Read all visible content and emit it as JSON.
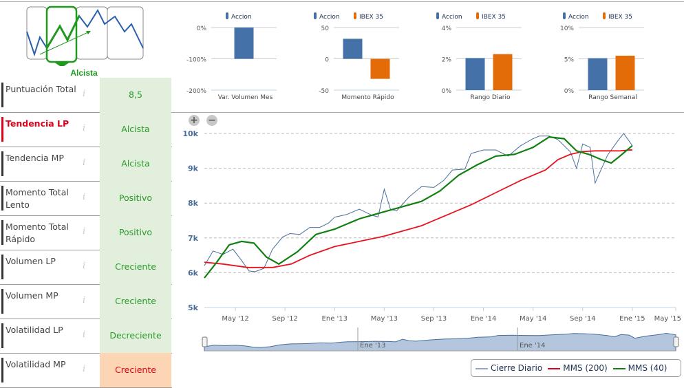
{
  "badge": {
    "label": "Alcista"
  },
  "rows": [
    {
      "label": "Puntuación Total",
      "value": "8,5"
    },
    {
      "label": "Tendencia LP",
      "value": "Alcista"
    },
    {
      "label": "Tendencia MP",
      "value": "Alcista"
    },
    {
      "label": "Momento Total Lento",
      "value": "Positivo"
    },
    {
      "label": "Momento Total Rápido",
      "value": "Positivo"
    },
    {
      "label": "Volumen LP",
      "value": "Creciente"
    },
    {
      "label": "Volumen MP",
      "value": "Creciente"
    },
    {
      "label": "Volatilidad LP",
      "value": "Decreciente"
    },
    {
      "label": "Volatilidad MP",
      "value": "Creciente"
    }
  ],
  "info_icon": "i",
  "colors": {
    "accion": "#4472a8",
    "ibex": "#e36c09",
    "green": "#1f9a1f",
    "red": "#e0001a"
  },
  "chart_data": [
    {
      "type": "bar",
      "title": "Var. Volumen Mes",
      "legend": [
        "Accion"
      ],
      "yticks": [
        "0%",
        "-100%",
        "-200%"
      ],
      "ylim": [
        -200,
        0
      ],
      "values": [
        -100
      ]
    },
    {
      "type": "bar",
      "title": "Momento Rápido",
      "legend": [
        "Accion",
        "IBEX 35"
      ],
      "yticks": [
        "50",
        "0",
        "-50"
      ],
      "ylim": [
        -50,
        50
      ],
      "values": [
        32,
        -32
      ]
    },
    {
      "type": "bar",
      "title": "Rango Diario",
      "legend": [
        "Accion",
        "IBEX 35"
      ],
      "yticks": [
        "4%",
        "2%",
        "0%"
      ],
      "ylim": [
        0,
        4
      ],
      "values": [
        2.05,
        2.3
      ]
    },
    {
      "type": "bar",
      "title": "Rango Semanal",
      "legend": [
        "Accion",
        "IBEX 35"
      ],
      "yticks": [
        "10%",
        "5%",
        "0%"
      ],
      "ylim": [
        0,
        10
      ],
      "values": [
        5.1,
        5.5
      ]
    },
    {
      "type": "line",
      "ylim": [
        5000,
        10000
      ],
      "yticks": [
        "10k",
        "9k",
        "8k",
        "7k",
        "6k",
        "5k"
      ],
      "xlim": [
        1.5,
        39.5
      ],
      "xticks": [
        {
          "m": 4,
          "label": "May '12"
        },
        {
          "m": 8,
          "label": "Sep '12"
        },
        {
          "m": 12,
          "label": "Ene '13"
        },
        {
          "m": 16,
          "label": "May '13"
        },
        {
          "m": 20,
          "label": "Sep '13"
        },
        {
          "m": 24,
          "label": "Ene '14"
        },
        {
          "m": 28,
          "label": "May '14"
        },
        {
          "m": 32,
          "label": "Sep '14"
        },
        {
          "m": 36,
          "label": "Ene '15"
        },
        {
          "m": 40,
          "label": "May '15"
        }
      ],
      "navigator_labels": [
        "Ene '13",
        "Ene '14"
      ],
      "series": [
        {
          "name": "Cierre Diario",
          "m": [
            1.5,
            2.2,
            3,
            3.8,
            4.5,
            5.1,
            5.6,
            6.3,
            7,
            7.8,
            8.4,
            9.2,
            10,
            10.8,
            11.5,
            12,
            13,
            14,
            15,
            15.5,
            16,
            16.5,
            17,
            18,
            19,
            20,
            20.8,
            21.5,
            22.5,
            23,
            24,
            25,
            26,
            27,
            28,
            28.5,
            29.3,
            30,
            31,
            31.5,
            32,
            32.6,
            33,
            33.5,
            34,
            34.8,
            35.3,
            36
          ],
          "v": [
            6200,
            6650,
            6500,
            6600,
            6400,
            6050,
            5980,
            6200,
            6700,
            7000,
            7050,
            7150,
            7300,
            7250,
            7500,
            7620,
            7650,
            7750,
            7700,
            7600,
            8350,
            7900,
            7800,
            8150,
            8400,
            8500,
            8650,
            8900,
            9050,
            9450,
            9500,
            9450,
            9400,
            9650,
            9800,
            10000,
            9950,
            9800,
            9400,
            9050,
            9700,
            9550,
            8650,
            9000,
            9350,
            9700,
            10050,
            9650
          ]
        },
        {
          "name": "MMS (200)",
          "m": [
            1.5,
            3,
            5,
            7,
            8.5,
            10,
            12,
            14,
            16,
            19,
            21,
            23,
            25,
            27,
            29,
            30,
            31,
            32,
            33,
            34,
            35,
            36
          ],
          "v": [
            6300,
            6250,
            6150,
            6150,
            6250,
            6500,
            6750,
            6900,
            7050,
            7350,
            7650,
            7950,
            8300,
            8650,
            8950,
            9250,
            9400,
            9480,
            9500,
            9500,
            9500,
            9530
          ]
        },
        {
          "name": "MMS (40)",
          "m": [
            1.5,
            2.5,
            3.5,
            4.5,
            5.5,
            6.5,
            7.5,
            9,
            10.5,
            12,
            14,
            16,
            17.5,
            19,
            20.5,
            22,
            23.5,
            25,
            26.5,
            28,
            29.3,
            30.5,
            31.5,
            32.5,
            33.5,
            34.3,
            35,
            36
          ],
          "v": [
            5850,
            6300,
            6800,
            6900,
            6850,
            6450,
            6250,
            6600,
            7100,
            7250,
            7550,
            7750,
            7900,
            8050,
            8350,
            8800,
            9100,
            9350,
            9400,
            9600,
            9900,
            9850,
            9500,
            9400,
            9250,
            9150,
            9350,
            9650
          ]
        }
      ]
    }
  ]
}
